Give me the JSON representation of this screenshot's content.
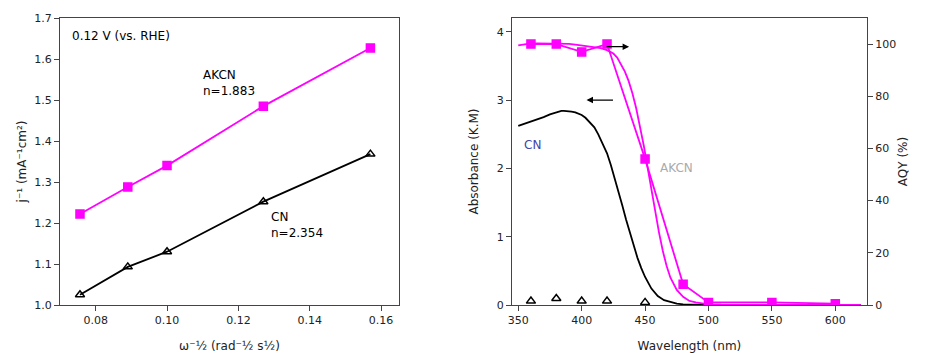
{
  "chart_data": [
    {
      "type": "line",
      "title": "0.12 V (vs. RHE)",
      "xlabel": "ω⁻½ (rad⁻½ s½)",
      "ylabel": "j⁻¹ (mA⁻¹cm²)",
      "xlim": [
        0.07,
        0.165
      ],
      "ylim": [
        1.0,
        1.7
      ],
      "xticks": [
        0.08,
        {
          "value": 0.1,
          "label": "0.10"
        },
        0.12,
        0.14,
        0.16
      ],
      "yticks": [
        {
          "value": 1.0,
          "label": "1.0"
        },
        1.1,
        1.2,
        1.3,
        1.4,
        1.5,
        1.6,
        1.7
      ],
      "grid": false,
      "series": [
        {
          "name": "AKCN",
          "color": "#ff00ff",
          "marker": "square",
          "x": [
            0.0756,
            0.089,
            0.1,
            0.127,
            0.157
          ],
          "values": [
            1.222,
            1.288,
            1.34,
            1.485,
            1.627
          ]
        },
        {
          "name": "CN",
          "color": "#000000",
          "marker": "triangle-up-open",
          "x": [
            0.0756,
            0.089,
            0.1,
            0.127,
            0.157
          ],
          "values": [
            1.025,
            1.093,
            1.13,
            1.252,
            1.368
          ]
        }
      ],
      "annotations": [
        {
          "text": "AKCN\nn=1.883"
        },
        {
          "text": "CN\nn=2.354"
        }
      ]
    },
    {
      "type": "line",
      "xlabel": "Wavelength (nm)",
      "ylabel": "Absorbance (K.M)",
      "y2label": "AQY (%)",
      "xlim": [
        345,
        625
      ],
      "ylim": [
        0,
        4.2
      ],
      "y2lim": [
        0,
        110
      ],
      "xticks": [
        350,
        400,
        450,
        500,
        550,
        600
      ],
      "yticks": [
        0,
        1,
        2,
        3,
        4
      ],
      "y2ticks": [
        0,
        20,
        40,
        60,
        80,
        100
      ],
      "grid": false,
      "series": [
        {
          "name": "CN",
          "color": "#000000",
          "x": [
            350,
            355,
            360,
            365,
            370,
            375,
            380,
            382,
            384,
            386,
            388,
            390,
            392,
            395,
            398,
            400,
            403,
            406,
            410,
            413,
            416,
            420,
            423,
            426,
            429,
            432,
            435,
            438,
            441,
            444,
            447,
            450,
            455,
            460,
            465,
            470,
            475,
            480,
            485,
            490,
            495,
            500,
            510,
            520,
            530,
            540,
            550,
            560,
            580,
            600,
            620
          ],
          "values": [
            2.62,
            2.65,
            2.68,
            2.72,
            2.75,
            2.79,
            2.82,
            2.83,
            2.84,
            2.84,
            2.84,
            2.84,
            2.83,
            2.82,
            2.8,
            2.78,
            2.74,
            2.68,
            2.6,
            2.5,
            2.38,
            2.22,
            2.05,
            1.86,
            1.66,
            1.46,
            1.25,
            1.05,
            0.86,
            0.69,
            0.54,
            0.41,
            0.24,
            0.13,
            0.07,
            0.04,
            0.02,
            0.01,
            0.006,
            0.004,
            0.003,
            0.002,
            0.001,
            0.001,
            0.001,
            0.001,
            0.001,
            0.001,
            0.001,
            0.001,
            0.001
          ]
        },
        {
          "name": "AKCN",
          "color": "#ff00ff",
          "x": [
            350,
            355,
            360,
            365,
            370,
            375,
            380,
            385,
            390,
            395,
            400,
            405,
            410,
            415,
            420,
            425,
            428,
            431,
            434,
            437,
            440,
            443,
            446,
            449,
            452,
            455,
            458,
            461,
            464,
            467,
            470,
            475,
            480,
            485,
            490,
            495,
            500,
            510,
            520,
            530,
            540,
            550,
            560,
            580,
            600,
            620
          ],
          "values": [
            3.8,
            3.82,
            3.83,
            3.83,
            3.83,
            3.83,
            3.82,
            3.82,
            3.82,
            3.81,
            3.8,
            3.79,
            3.78,
            3.76,
            3.73,
            3.68,
            3.62,
            3.53,
            3.42,
            3.28,
            3.1,
            2.88,
            2.62,
            2.33,
            2.01,
            1.68,
            1.36,
            1.06,
            0.79,
            0.57,
            0.4,
            0.22,
            0.12,
            0.06,
            0.04,
            0.02,
            0.01,
            0.005,
            0.003,
            0.002,
            0.001,
            0.001,
            0.001,
            0.001,
            0.001,
            0.001
          ]
        },
        {
          "name": "AKCN",
          "color": "#ff00ff",
          "marker": "square",
          "axis": "y2",
          "x": [
            360,
            380,
            400,
            420,
            450,
            480,
            500,
            550,
            600
          ],
          "values": [
            100,
            100,
            97,
            100,
            56,
            8,
            1,
            1,
            0.5
          ]
        },
        {
          "name": "CN",
          "color": "#000000",
          "marker": "triangle-up-open",
          "line_style": "none",
          "axis": "y2",
          "x": [
            360,
            380,
            400,
            420,
            450
          ],
          "values": [
            1.5,
            2.5,
            1.5,
            1.5,
            1.0
          ]
        }
      ],
      "annotations": [
        {
          "text": "CN",
          "color": "#4444aa"
        },
        {
          "text": "AKCN",
          "color": "#aaaaaa"
        }
      ]
    }
  ]
}
